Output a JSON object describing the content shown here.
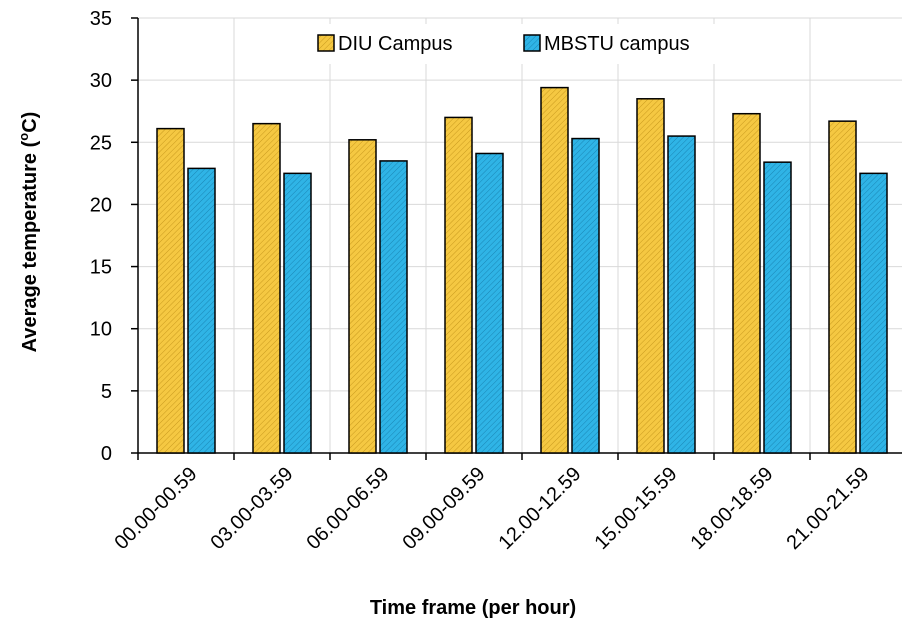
{
  "chart_data": {
    "type": "bar",
    "title": "",
    "xlabel": "Time frame (per hour)",
    "ylabel": "Average temperature (",
    "ylabel_sup": "o",
    "ylabel_unit": "C)",
    "categories": [
      "00.00-00.59",
      "03.00-03.59",
      "06.00-06.59",
      "09.00-09.59",
      "12.00-12.59",
      "15.00-15.59",
      "18.00-18.59",
      "21.00-21.59"
    ],
    "series": [
      {
        "name": "DIU Campus",
        "values": [
          26.1,
          26.5,
          25.2,
          27.0,
          29.4,
          28.5,
          27.3,
          26.7
        ],
        "color": "#F5C842"
      },
      {
        "name": "MBSTU campus",
        "values": [
          22.9,
          22.5,
          23.5,
          24.1,
          25.3,
          25.5,
          23.4,
          22.5
        ],
        "color": "#2FB4E6"
      }
    ],
    "ylim": [
      0,
      35
    ],
    "yticks": [
      0,
      5,
      10,
      15,
      20,
      25,
      30,
      35
    ],
    "grid": true,
    "legend_position": "top-center"
  }
}
